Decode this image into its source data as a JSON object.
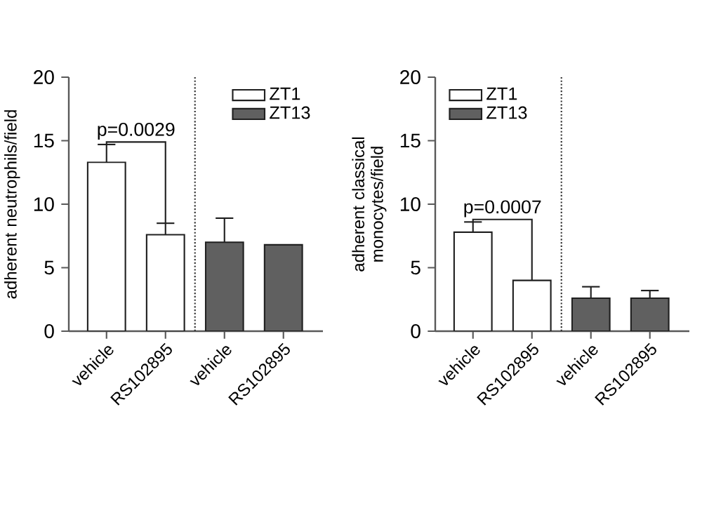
{
  "chart_data": [
    {
      "type": "bar",
      "ylabel": "adherent neutrophils/field",
      "categories": [
        "vehicle",
        "RS102895",
        "vehicle",
        "RS102895"
      ],
      "series": [
        {
          "name": "ZT1",
          "color": "#ffffff",
          "values": [
            13.3,
            7.6,
            null,
            null
          ],
          "errors": [
            [
              13.3,
              14.7
            ],
            [
              7.6,
              8.5
            ],
            null,
            null
          ]
        },
        {
          "name": "ZT13",
          "color": "#606060",
          "values": [
            null,
            null,
            7.0,
            6.8
          ],
          "errors": [
            null,
            null,
            [
              7.0,
              8.9
            ],
            null
          ]
        }
      ],
      "ylim": [
        0,
        20
      ],
      "yticks": [
        0,
        5,
        10,
        15,
        20
      ],
      "legend": "top right",
      "annotations": [
        {
          "text": "p=0.0029",
          "x": "vehicle",
          "y": 14.7
        }
      ]
    },
    {
      "type": "bar",
      "ylabel": "adherent classical monocytes/field",
      "categories": [
        "vehicle",
        "RS102895",
        "vehicle",
        "RS102895"
      ],
      "series": [
        {
          "name": "ZT1",
          "color": "#ffffff",
          "values": [
            7.8,
            4.0,
            null,
            null
          ],
          "errors": [
            [
              7.8,
              8.6
            ],
            null,
            null,
            null
          ]
        },
        {
          "name": "ZT13",
          "color": "#606060",
          "values": [
            null,
            null,
            2.6,
            2.6
          ],
          "errors": [
            null,
            null,
            [
              2.6,
              3.5
            ],
            [
              2.6,
              3.2
            ]
          ]
        }
      ],
      "ylim": [
        0,
        20
      ],
      "yticks": [
        0,
        5,
        10,
        15,
        20
      ],
      "legend": "top left",
      "annotations": [
        {
          "text": "p=0.0007",
          "x": "vehicle",
          "y": 8.6
        }
      ]
    }
  ]
}
